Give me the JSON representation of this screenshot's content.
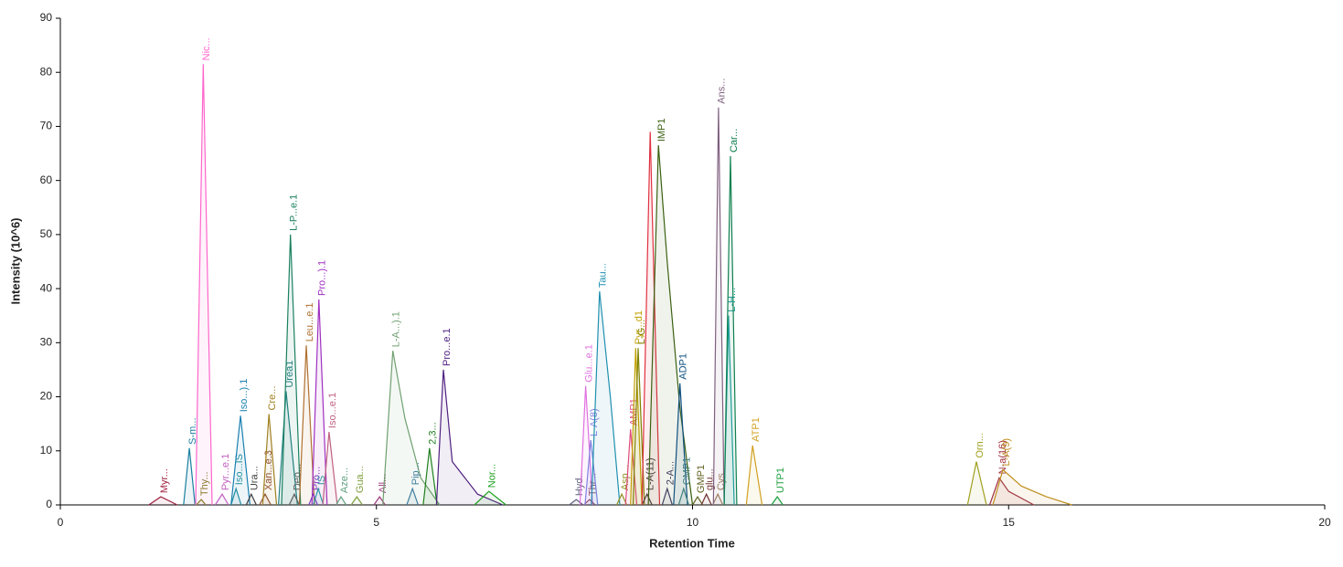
{
  "chart_data": {
    "type": "line",
    "x_label": "Retention Time",
    "y_label": "Intensity (10^6)",
    "xlim": [
      0,
      20
    ],
    "ylim": [
      0,
      90
    ],
    "xticks": [
      0,
      5,
      10,
      15,
      20
    ],
    "yticks": [
      0,
      10,
      20,
      30,
      40,
      50,
      60,
      70,
      80,
      90
    ],
    "series": [
      {
        "name": "Myr...",
        "color": "#a02040",
        "x": [
          1.4,
          1.59,
          1.85
        ],
        "values": [
          0,
          1.5,
          0
        ]
      },
      {
        "name": "S-m...",
        "color": "#1a7fa0",
        "x": [
          1.95,
          2.04,
          2.13
        ],
        "values": [
          0,
          10.5,
          0
        ]
      },
      {
        "name": "Thy...",
        "color": "#808020",
        "x": [
          2.15,
          2.23,
          2.3
        ],
        "values": [
          0,
          1,
          0
        ]
      },
      {
        "name": "Nic...",
        "color": "#ff66cc",
        "x": [
          2.14,
          2.26,
          2.4
        ],
        "values": [
          0,
          81.5,
          0
        ]
      },
      {
        "name": "Pyr...e.1",
        "color": "#c060c0",
        "x": [
          2.45,
          2.56,
          2.66
        ],
        "values": [
          0,
          2,
          0
        ]
      },
      {
        "name": "Iso...IS",
        "color": "#2090a0",
        "x": [
          2.7,
          2.78,
          2.86
        ],
        "values": [
          0,
          3,
          0
        ]
      },
      {
        "name": "Iso...).1",
        "color": "#1a80b0",
        "x": [
          2.7,
          2.85,
          3.0
        ],
        "values": [
          0,
          16.5,
          0
        ]
      },
      {
        "name": "Ura...",
        "color": "#404040",
        "x": [
          2.94,
          3.02,
          3.1
        ],
        "values": [
          0,
          2,
          0
        ]
      },
      {
        "name": "Xan...e.3",
        "color": "#905030",
        "x": [
          3.15,
          3.24,
          3.33
        ],
        "values": [
          0,
          2,
          0
        ]
      },
      {
        "name": "Cre...",
        "color": "#a08020",
        "x": [
          3.2,
          3.3,
          3.42
        ],
        "values": [
          0,
          16.8,
          0
        ]
      },
      {
        "name": "Urea1",
        "color": "#208080",
        "x": [
          3.45,
          3.57,
          3.75
        ],
        "values": [
          0,
          21,
          0
        ]
      },
      {
        "name": "L-P...e.1",
        "color": "#1a8060",
        "x": [
          3.5,
          3.64,
          3.8
        ],
        "values": [
          0,
          50,
          0
        ]
      },
      {
        "name": "Deo...",
        "color": "#606060",
        "x": [
          3.62,
          3.7,
          3.78
        ],
        "values": [
          0,
          2,
          0
        ]
      },
      {
        "name": "Leu...e.1",
        "color": "#b07030",
        "x": [
          3.78,
          3.89,
          4.02
        ],
        "values": [
          0,
          29.5,
          0
        ]
      },
      {
        "name": "Pro...",
        "color": "#8040c0",
        "x": [
          3.93,
          4.0,
          4.07
        ],
        "values": [
          0,
          2,
          0
        ]
      },
      {
        "name": "IS",
        "color": "#20a0a0",
        "x": [
          4.0,
          4.08,
          4.16
        ],
        "values": [
          0,
          3,
          0
        ]
      },
      {
        "name": "Pro...).1",
        "color": "#a030c0",
        "x": [
          3.98,
          4.09,
          4.22
        ],
        "values": [
          0,
          38,
          0
        ]
      },
      {
        "name": "Iso...e.1",
        "color": "#c06080",
        "x": [
          4.15,
          4.25,
          4.38
        ],
        "values": [
          0,
          13.5,
          0
        ]
      },
      {
        "name": "Aze...",
        "color": "#60a080",
        "x": [
          4.36,
          4.44,
          4.52
        ],
        "values": [
          0,
          1.5,
          0
        ]
      },
      {
        "name": "Gua...",
        "color": "#80a040",
        "x": [
          4.6,
          4.69,
          4.78
        ],
        "values": [
          0,
          1.5,
          0
        ]
      },
      {
        "name": "All...",
        "color": "#a04080",
        "x": [
          4.96,
          5.05,
          5.14
        ],
        "values": [
          0,
          1.5,
          0
        ]
      },
      {
        "name": "L-A...).1",
        "color": "#70a070",
        "x": [
          5.1,
          5.26,
          5.45,
          5.7,
          6.0
        ],
        "values": [
          0,
          28.5,
          16,
          5,
          0
        ]
      },
      {
        "name": "Pip...",
        "color": "#4080a0",
        "x": [
          5.48,
          5.57,
          5.66
        ],
        "values": [
          0,
          3,
          0
        ]
      },
      {
        "name": "2,3...",
        "color": "#208020",
        "x": [
          5.74,
          5.84,
          5.96
        ],
        "values": [
          0,
          10.5,
          0
        ]
      },
      {
        "name": "Pro...e.1",
        "color": "#502080",
        "x": [
          5.95,
          6.06,
          6.2,
          6.6,
          7.0
        ],
        "values": [
          0,
          25,
          8,
          2,
          0
        ]
      },
      {
        "name": "Nor...",
        "color": "#20a020",
        "x": [
          6.55,
          6.78,
          7.05
        ],
        "values": [
          0,
          2.5,
          0
        ]
      },
      {
        "name": "Hyd...",
        "color": "#606080",
        "x": [
          8.05,
          8.16,
          8.27
        ],
        "values": [
          0,
          1,
          0
        ]
      },
      {
        "name": "Glu...e.1",
        "color": "#e070e0",
        "x": [
          8.22,
          8.31,
          8.42
        ],
        "values": [
          0,
          22,
          0
        ]
      },
      {
        "name": "Thr...",
        "color": "#905060",
        "x": [
          8.28,
          8.37,
          8.46
        ],
        "values": [
          0,
          1,
          0
        ]
      },
      {
        "name": "L-A(8)",
        "color": "#8080e0",
        "x": [
          8.3,
          8.39,
          8.5
        ],
        "values": [
          0,
          12,
          0
        ]
      },
      {
        "name": "Tau...",
        "color": "#2090b0",
        "x": [
          8.4,
          8.53,
          8.7,
          8.85
        ],
        "values": [
          0,
          39.5,
          20,
          0
        ]
      },
      {
        "name": "Asp...",
        "color": "#909020",
        "x": [
          8.8,
          8.88,
          8.96
        ],
        "values": [
          0,
          2,
          0
        ]
      },
      {
        "name": "AMP1",
        "color": "#e05080",
        "x": [
          8.94,
          9.02,
          9.12
        ],
        "values": [
          0,
          14,
          0
        ]
      },
      {
        "name": "Pyr...d1",
        "color": "#c0a000",
        "x": [
          9.02,
          9.1,
          9.2
        ],
        "values": [
          0,
          29,
          0
        ]
      },
      {
        "name": "L-G...",
        "color": "#808000",
        "x": [
          9.06,
          9.14,
          9.24
        ],
        "values": [
          0,
          29,
          0
        ]
      },
      {
        "name": "L-A(11)",
        "color": "#404040",
        "x": [
          9.2,
          9.28,
          9.36
        ],
        "values": [
          0,
          2,
          0
        ]
      },
      {
        "name": null,
        "color": "#e03040",
        "x": [
          9.2,
          9.33,
          9.48
        ],
        "values": [
          0,
          69,
          0
        ]
      },
      {
        "name": "IMP1",
        "color": "#3a6010",
        "x": [
          9.3,
          9.46,
          9.6,
          9.8,
          10.0
        ],
        "values": [
          0,
          66.5,
          45,
          18,
          0
        ]
      },
      {
        "name": "2-A...",
        "color": "#404060",
        "x": [
          9.52,
          9.6,
          9.68
        ],
        "values": [
          0,
          3,
          0
        ]
      },
      {
        "name": "ADP1",
        "color": "#105080",
        "x": [
          9.7,
          9.8,
          9.92
        ],
        "values": [
          0,
          22.5,
          0
        ]
      },
      {
        "name": "CMP1",
        "color": "#408080",
        "x": [
          9.78,
          9.86,
          9.94
        ],
        "values": [
          0,
          3,
          0
        ]
      },
      {
        "name": "GMP1",
        "color": "#606020",
        "x": [
          10.0,
          10.08,
          10.16
        ],
        "values": [
          0,
          1.5,
          0
        ]
      },
      {
        "name": "glu...",
        "color": "#703030",
        "x": [
          10.14,
          10.22,
          10.3
        ],
        "values": [
          0,
          2,
          0
        ]
      },
      {
        "name": "Cys...",
        "color": "#a08060",
        "x": [
          10.32,
          10.4,
          10.48
        ],
        "values": [
          0,
          2,
          0
        ]
      },
      {
        "name": "Ans...",
        "color": "#806080",
        "x": [
          10.33,
          10.41,
          10.5
        ],
        "values": [
          0,
          73.5,
          0
        ]
      },
      {
        "name": "L-H...",
        "color": "#20a0a0",
        "x": [
          10.5,
          10.57,
          10.66
        ],
        "values": [
          0,
          35,
          0
        ]
      },
      {
        "name": "Car...",
        "color": "#108050",
        "x": [
          10.5,
          10.6,
          10.7
        ],
        "values": [
          0,
          64.5,
          0
        ]
      },
      {
        "name": "ATP1",
        "color": "#d0a020",
        "x": [
          10.85,
          10.95,
          11.1
        ],
        "values": [
          0,
          11,
          0
        ]
      },
      {
        "name": "UTP1",
        "color": "#20a040",
        "x": [
          11.25,
          11.34,
          11.43
        ],
        "values": [
          0,
          1.5,
          0
        ]
      },
      {
        "name": "Orn...",
        "color": "#a0a020",
        "x": [
          14.35,
          14.49,
          14.65
        ],
        "values": [
          0,
          8,
          0
        ]
      },
      {
        "name": "N-a(16)",
        "color": "#a03040",
        "x": [
          14.7,
          14.85,
          15.0,
          15.4
        ],
        "values": [
          0,
          5,
          2.5,
          0
        ]
      },
      {
        "name": "L-A(9)",
        "color": "#c09020",
        "x": [
          14.75,
          14.91,
          15.2,
          15.6,
          16.0
        ],
        "values": [
          0,
          6.5,
          3.5,
          1.5,
          0
        ]
      }
    ]
  }
}
